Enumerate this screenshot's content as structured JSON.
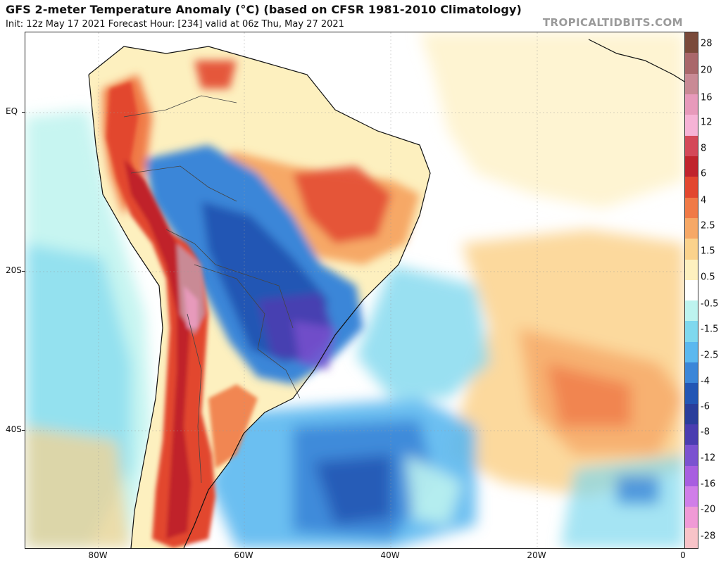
{
  "header": {
    "title": "GFS 2-meter Temperature Anomaly (°C) (based on CFSR 1981-2010 Climatology)",
    "subtitle": "Init: 12z May 17 2021   Forecast Hour: [234]   valid at 06z Thu, May 27 2021",
    "brand": "TROPICALTIDBITS.COM"
  },
  "axes": {
    "lat_labels": [
      "EQ",
      "20S",
      "40S"
    ],
    "lon_labels": [
      "80W",
      "60W",
      "40W",
      "20W",
      "0"
    ]
  },
  "colorbar": {
    "labels": [
      "28",
      "20",
      "16",
      "12",
      "8",
      "6",
      "4",
      "2.5",
      "1.5",
      "0.5",
      "-0.5",
      "-1.5",
      "-2.5",
      "-4",
      "-6",
      "-8",
      "-12",
      "-16",
      "-20",
      "-28"
    ],
    "colors": [
      "#7a4a3a",
      "#a9676a",
      "#c98a95",
      "#e79abb",
      "#f6b3d6",
      "#d44858",
      "#c0242c",
      "#e2472f",
      "#f07a47",
      "#f6a866",
      "#fbd28c",
      "#fdf0bf",
      "#ffffff",
      "#bdf3ef",
      "#7fd8ee",
      "#5bb8ef",
      "#3b86d8",
      "#2356b4",
      "#2a3e9b",
      "#4a3db0",
      "#7b52d0",
      "#a85ee0",
      "#d07ee8",
      "#f09ad6",
      "#f8c3c8"
    ]
  }
}
